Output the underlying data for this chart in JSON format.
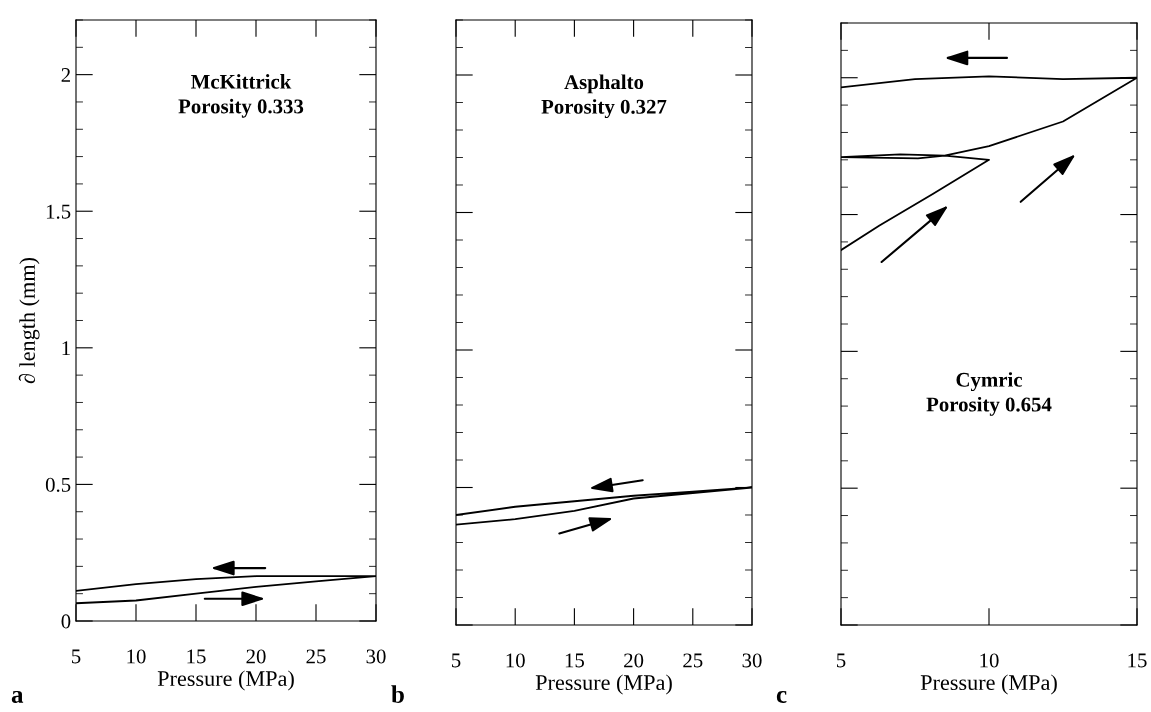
{
  "chart_data": [
    {
      "type": "line",
      "xlabel": "Pressure (MPa)",
      "ylabel": "∂ length (mm)",
      "annotations": [
        "McKittrick\nPorosity 0.333",
        "a"
      ],
      "xlim": [
        5,
        30
      ],
      "xticks": [
        5,
        10,
        15,
        20,
        25,
        30
      ],
      "ylim": [
        0,
        2.2
      ],
      "yticks": [
        0,
        0.5,
        1,
        1.5,
        2
      ],
      "grid": false,
      "marker": "none",
      "line_style": "solid",
      "series": [
        {
          "color": "#000000",
          "x": [
            5,
            10,
            15,
            20,
            25,
            30,
            20,
            15,
            10,
            5
          ],
          "values": [
            0.065,
            0.075,
            0.1,
            0.125,
            0.145,
            0.164,
            0.164,
            0.153,
            0.135,
            0.11
          ]
        }
      ]
    },
    {
      "type": "line",
      "xlabel": "Pressure (MPa)",
      "annotations": [
        "Asphalto\nPorosity 0.327",
        "b"
      ],
      "xlim": [
        5,
        30
      ],
      "xticks": [
        5,
        10,
        15,
        20,
        25,
        30
      ],
      "ylim": [
        0,
        2.2
      ],
      "yticks": [
        0,
        0.5,
        1,
        1.5,
        2
      ],
      "tick_labels": "x",
      "grid": false,
      "marker": "none",
      "line_style": "solid",
      "series": [
        {
          "color": "#000000",
          "x": [
            5,
            10,
            15,
            20,
            25,
            30,
            25,
            20,
            15,
            10,
            5
          ],
          "values": [
            0.365,
            0.385,
            0.415,
            0.46,
            0.48,
            0.5,
            0.485,
            0.47,
            0.45,
            0.43,
            0.4
          ]
        }
      ]
    },
    {
      "type": "line",
      "xlabel": "Pressure (MPa)",
      "annotations": [
        "Cymric\nPorosity 0.654",
        "c"
      ],
      "xlim": [
        5,
        15
      ],
      "xticks": [
        5,
        10,
        15
      ],
      "ylim": [
        0,
        2.2
      ],
      "yticks": [
        0,
        0.5,
        1,
        1.5,
        2
      ],
      "tick_labels": "x",
      "grid": false,
      "marker": "none",
      "line_style": "solid",
      "series": [
        {
          "color": "#000000",
          "x": [
            5,
            6.3,
            8.1,
            10,
            8.5,
            7.6,
            5,
            7,
            8.5,
            10,
            12.5,
            15,
            12.5,
            10,
            7.5,
            5
          ],
          "values": [
            1.37,
            1.46,
            1.575,
            1.7,
            1.715,
            1.705,
            1.71,
            1.72,
            1.715,
            1.75,
            1.84,
            2.0,
            1.995,
            2.005,
            1.995,
            1.965
          ]
        }
      ]
    }
  ]
}
